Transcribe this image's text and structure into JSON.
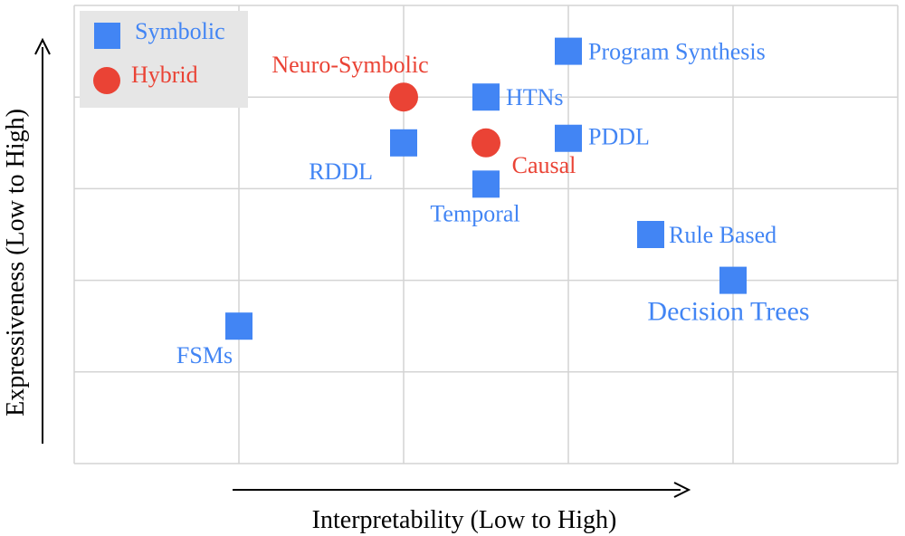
{
  "chart_data": {
    "type": "scatter",
    "title": "",
    "xlabel": "Interpretability (Low to High)",
    "ylabel": "Expressiveness (Low to High)",
    "xlim": [
      0,
      5
    ],
    "ylim": [
      0,
      5
    ],
    "grid": true,
    "legend_position": "top-left",
    "series": [
      {
        "name": "Symbolic",
        "marker": "square",
        "color": "#4285f4",
        "points": [
          {
            "label": "Program Synthesis",
            "x": 3.0,
            "y": 4.5
          },
          {
            "label": "HTNs",
            "x": 2.5,
            "y": 4.0
          },
          {
            "label": "RDDL",
            "x": 2.0,
            "y": 3.5
          },
          {
            "label": "PDDL",
            "x": 3.0,
            "y": 3.55
          },
          {
            "label": "Temporal",
            "x": 2.5,
            "y": 3.05
          },
          {
            "label": "Rule Based",
            "x": 3.5,
            "y": 2.5
          },
          {
            "label": "Decision Trees",
            "x": 4.0,
            "y": 2.0
          },
          {
            "label": "FSMs",
            "x": 1.0,
            "y": 1.5
          }
        ]
      },
      {
        "name": "Hybrid",
        "marker": "circle",
        "color": "#ea4335",
        "points": [
          {
            "label": "Neuro-Symbolic",
            "x": 2.0,
            "y": 4.0
          },
          {
            "label": "Causal",
            "x": 2.5,
            "y": 3.5
          }
        ]
      }
    ]
  }
}
